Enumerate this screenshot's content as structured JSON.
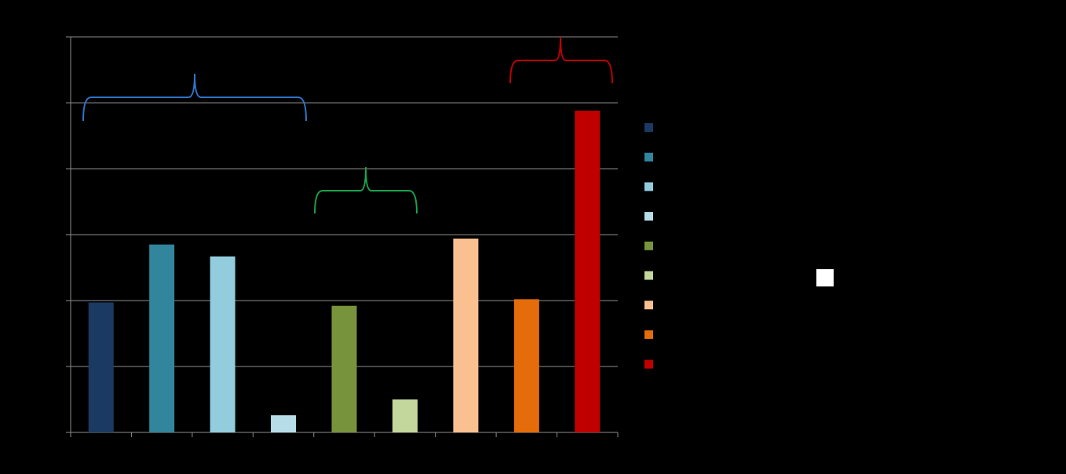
{
  "chart_data": {
    "type": "bar",
    "categories": [
      null,
      null,
      null,
      null,
      null,
      null,
      null,
      null,
      null
    ],
    "values": [
      1.97,
      2.85,
      2.67,
      0.26,
      1.92,
      0.5,
      2.94,
      2.02,
      4.88
    ],
    "colors": [
      "#1b3a63",
      "#31859c",
      "#93cddd",
      "#b7dee8",
      "#77933c",
      "#c3d69b",
      "#fac090",
      "#e46c0a",
      "#c00000"
    ],
    "ylim": [
      0,
      6
    ],
    "yticks": [
      0,
      1,
      2,
      3,
      4,
      5,
      6
    ],
    "grid": true,
    "legend": "right"
  }
}
